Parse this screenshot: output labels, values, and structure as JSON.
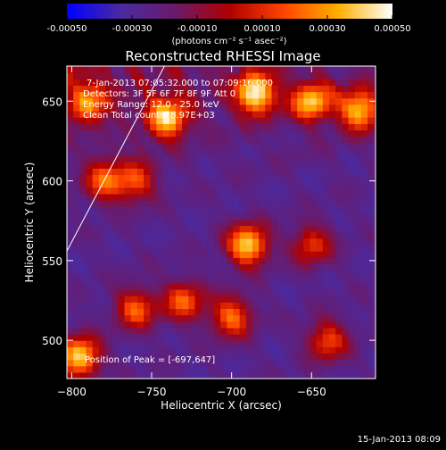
{
  "colorbar": {
    "ticks": [
      "-0.00050",
      "-0.00030",
      "-0.00010",
      "0.00010",
      "0.00030",
      "0.00050"
    ],
    "unit_label": "(photons cm⁻² s⁻¹ asec⁻²)",
    "range": [
      -0.0005,
      0.0005
    ],
    "colors": [
      "#0000ff",
      "#4a2aa0",
      "#6a1a6a",
      "#b00000",
      "#ff4400",
      "#ffb000",
      "#ffffff"
    ]
  },
  "title": "Reconstructed RHESSI Image",
  "annotations": {
    "line1": "7-Jan-2013 07:05:32.000 to 07:09:16.000",
    "line2": "Detectors: 3F 5F 6F 7F 8F 9F Att 0",
    "line3": "Energy Range: 12.0 - 25.0 keV",
    "line4": "Clean     Total counts: 8.97E+03",
    "peak": "Position of Peak = [-697,647]"
  },
  "footer": {
    "timestamp": "15-Jan-2013 08:09"
  },
  "chart_data": {
    "type": "heatmap",
    "title": "Reconstructed RHESSI Image",
    "xlabel": "Heliocentric X (arcsec)",
    "ylabel": "Heliocentric Y (arcsec)",
    "xlim": [
      -803,
      -610
    ],
    "ylim": [
      476,
      672
    ],
    "x_ticks": [
      -800,
      -750,
      -700,
      -650
    ],
    "y_ticks": [
      500,
      550,
      600,
      650
    ],
    "x_tick_labels": [
      "−800",
      "−750",
      "−700",
      "−650"
    ],
    "y_tick_labels": [
      "500",
      "550",
      "600",
      "650"
    ],
    "peak_position": [
      -697,
      647
    ],
    "limb_line": {
      "from": [
        -803,
        556
      ],
      "to": [
        -742,
        672
      ]
    },
    "bright_sources": [
      {
        "x": -690,
        "y": 560,
        "level": 0.9
      },
      {
        "x": -740,
        "y": 640,
        "level": 0.85
      },
      {
        "x": -685,
        "y": 655,
        "level": 0.95
      },
      {
        "x": -650,
        "y": 650,
        "level": 0.8
      },
      {
        "x": -620,
        "y": 645,
        "level": 0.85
      },
      {
        "x": -795,
        "y": 490,
        "level": 0.9
      },
      {
        "x": -760,
        "y": 520,
        "level": 0.6
      },
      {
        "x": -730,
        "y": 525,
        "level": 0.6
      },
      {
        "x": -700,
        "y": 515,
        "level": 0.65
      },
      {
        "x": -780,
        "y": 600,
        "level": 0.6
      },
      {
        "x": -790,
        "y": 650,
        "level": 0.6
      },
      {
        "x": -760,
        "y": 600,
        "level": 0.55
      },
      {
        "x": -650,
        "y": 560,
        "level": 0.5
      },
      {
        "x": -640,
        "y": 500,
        "level": 0.55
      }
    ]
  }
}
